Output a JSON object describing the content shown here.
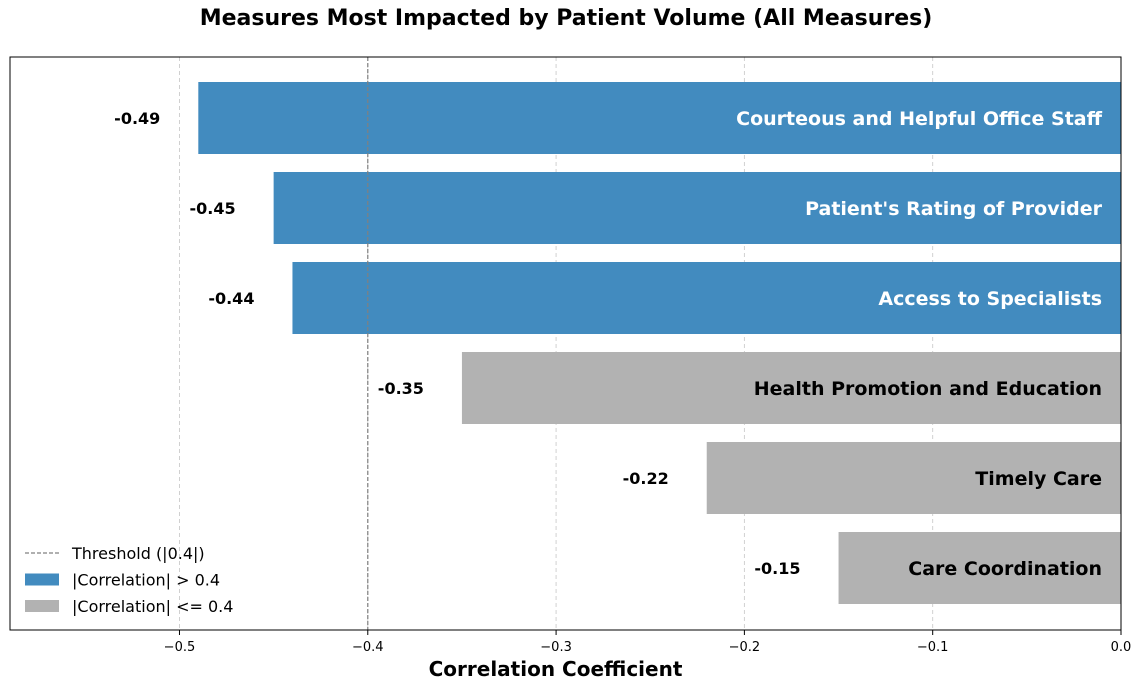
{
  "chart_data": {
    "type": "bar",
    "orientation": "horizontal",
    "title": "Measures Most Impacted by Patient Volume (All Measures)",
    "xlabel": "Correlation Coefficient",
    "ylabel": "",
    "xlim": [
      -0.59,
      0.0
    ],
    "x_ticks": [
      -0.5,
      -0.4,
      -0.3,
      -0.2,
      -0.1,
      0.0
    ],
    "x_tick_labels": [
      "−0.5",
      "−0.4",
      "−0.3",
      "−0.2",
      "−0.1",
      "0.0"
    ],
    "grid": "vertical dashed",
    "threshold": {
      "value": -0.4,
      "label": "Threshold (|0.4|)"
    },
    "categories": [
      "Courteous and Helpful Office Staff",
      "Patient's Rating of Provider",
      "Access to Specialists",
      "Health Promotion and Education",
      "Timely Care",
      "Care Coordination"
    ],
    "values": [
      -0.49,
      -0.45,
      -0.44,
      -0.35,
      -0.22,
      -0.15
    ],
    "value_labels": [
      "-0.49",
      "-0.45",
      "-0.44",
      "-0.35",
      "-0.22",
      "-0.15"
    ],
    "groups": [
      "high",
      "high",
      "high",
      "low",
      "low",
      "low"
    ],
    "colors": {
      "high": "#428bbf",
      "low": "#b2b2b2",
      "threshold": "#808080",
      "grid": "#cccccc"
    },
    "legend": {
      "placement": "lower-left",
      "entries": [
        {
          "label": "Threshold (|0.4|)",
          "kind": "line",
          "color_key": "threshold"
        },
        {
          "label": "|Correlation| > 0.4",
          "kind": "patch",
          "color_key": "high"
        },
        {
          "label": "|Correlation| <= 0.4",
          "kind": "patch",
          "color_key": "low"
        }
      ]
    }
  }
}
